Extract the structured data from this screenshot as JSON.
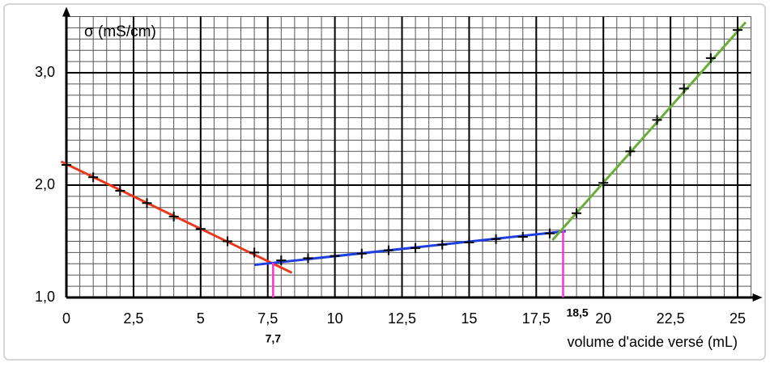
{
  "chart_data": {
    "type": "scatter",
    "y_label": "σ (mS/cm)",
    "x_label": "volume d'acide versé (mL)",
    "x": [
      0,
      1,
      2,
      3,
      4,
      5,
      6,
      7,
      8,
      9,
      10,
      11,
      12,
      13,
      14,
      15,
      16,
      17,
      18,
      19,
      20,
      21,
      22,
      23,
      24,
      25
    ],
    "y": [
      2.18,
      2.07,
      1.95,
      1.84,
      1.72,
      1.61,
      1.5,
      1.4,
      1.33,
      1.35,
      1.37,
      1.39,
      1.42,
      1.44,
      1.47,
      1.49,
      1.52,
      1.54,
      1.57,
      1.75,
      2.02,
      2.3,
      2.58,
      2.86,
      3.13,
      3.38
    ],
    "point_color": "#000000",
    "fit_lines": [
      {
        "color": "#e8391d",
        "x": [
          -0.2,
          8.4
        ],
        "y": [
          2.21,
          1.22
        ]
      },
      {
        "color": "#1f3fe0",
        "x": [
          7.0,
          18.6
        ],
        "y": [
          1.29,
          1.59
        ]
      },
      {
        "color": "#6aae3a",
        "x": [
          18.1,
          25.3
        ],
        "y": [
          1.51,
          3.45
        ]
      }
    ],
    "markers": [
      {
        "x": 7.7,
        "y": 1.31,
        "label": "7,7"
      },
      {
        "x": 18.5,
        "y": 1.6,
        "label": "18,5"
      }
    ],
    "marker_color": "#ff33cc",
    "xlim": [
      0,
      25.5
    ],
    "ylim": [
      1.0,
      3.5
    ],
    "xticks": [
      0,
      {
        "value": 2.5,
        "label": "2,5"
      },
      5,
      {
        "value": 7.5,
        "label": "7,5"
      },
      10,
      {
        "value": 12.5,
        "label": "12,5"
      },
      15,
      {
        "value": 17.5,
        "label": "17,5"
      },
      20,
      {
        "value": 22.5,
        "label": "22,5"
      },
      25
    ],
    "yticks": [
      {
        "value": 1.0,
        "label": "1,0"
      },
      {
        "value": 2.0,
        "label": "2,0"
      },
      {
        "value": 3.0,
        "label": "3,0"
      }
    ],
    "x_minor_step": 0.5,
    "y_minor_step": 0.1,
    "grid": true
  }
}
